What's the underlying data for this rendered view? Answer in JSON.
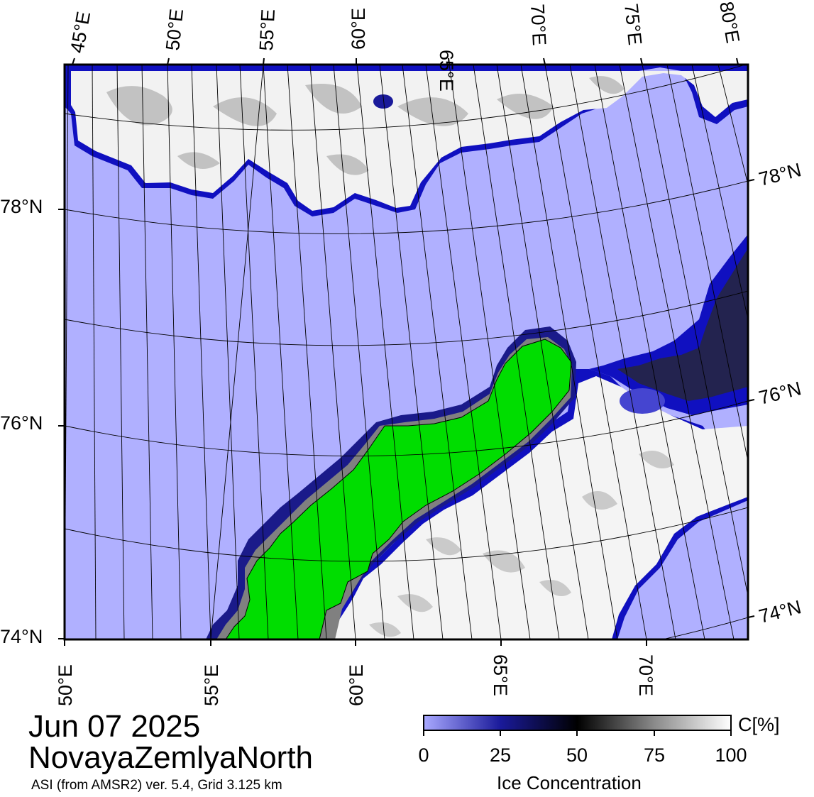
{
  "date_label": "Jun 07 2025",
  "region_label": "NovayaZemlyaNorth",
  "source_label": "ASI (from AMSR2) ver. 5.4,  Grid 3.125 km",
  "top_lon_labels": [
    "45°E",
    "50°E",
    "55°E",
    "60°E",
    "65°E",
    "70°E",
    "75°E",
    "80°E"
  ],
  "bottom_lon_labels": [
    "50°E",
    "55°E",
    "60°E",
    "65°E",
    "70°E"
  ],
  "left_lat_labels": [
    "78°N",
    "76°N",
    "74°N"
  ],
  "right_lat_labels": [
    "78°N",
    "76°N",
    "74°N"
  ],
  "colorbar": {
    "title": "Ice Concentration",
    "unit": "C[%]",
    "ticks": [
      "0",
      "25",
      "50",
      "75",
      "100"
    ]
  },
  "colors": {
    "open_water": "#b0b0ff",
    "land": "#00dd00",
    "no_data": "#808080",
    "ice_full": "#ffffff",
    "ice_mid": "#000000",
    "ice_low": "#00005a"
  }
}
